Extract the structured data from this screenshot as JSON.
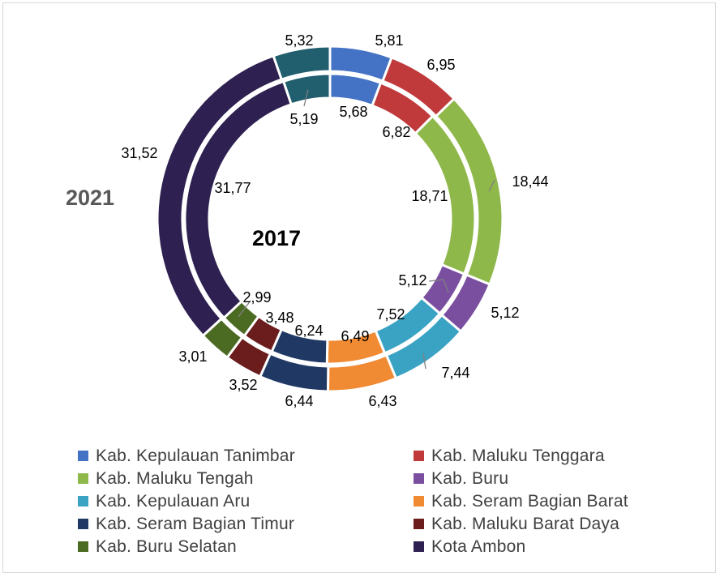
{
  "chart_data": {
    "type": "donut",
    "rings": [
      {
        "name": "2021",
        "position": "outer",
        "values": [
          5.81,
          6.95,
          18.44,
          5.12,
          7.44,
          6.43,
          6.44,
          3.52,
          3.01,
          31.52,
          5.32
        ],
        "labels": [
          "5,81",
          "6,95",
          "18,44",
          "5,12",
          "7,44",
          "6,43",
          "6,44",
          "3,52",
          "3,01",
          "31,52",
          "5,32"
        ]
      },
      {
        "name": "2017",
        "position": "inner",
        "values": [
          5.68,
          6.82,
          18.71,
          5.12,
          7.52,
          6.49,
          6.24,
          3.48,
          2.99,
          31.77,
          5.19
        ],
        "labels": [
          "5,68",
          "6,82",
          "18,71",
          "5,12",
          "7,52",
          "6,49",
          "6,24",
          "3,48",
          "2,99",
          "31,77",
          "5,19"
        ]
      }
    ],
    "categories": [
      "Kab. Kepulauan Tanimbar",
      "Kab. Maluku Tenggara",
      "Kab. Maluku Tengah",
      "Kab. Buru",
      "Kab. Kepulauan Aru",
      "Kab. Seram Bagian Barat",
      "Kab. Seram Bagian Timur",
      "Kab. Maluku Barat Daya",
      "Kab. Buru Selatan",
      "Kota Ambon",
      ""
    ],
    "colors": [
      "#4472c4",
      "#c0393b",
      "#8fb84a",
      "#7a4fa0",
      "#3aa3c4",
      "#f08a33",
      "#1f3864",
      "#6b1c1c",
      "#4b6a22",
      "#2e2050",
      "#215e6e"
    ],
    "legend": {
      "position": "bottom",
      "order": [
        "Kab. Kepulauan Tanimbar",
        "Kab. Maluku Tenggara",
        "Kab. Maluku Tengah",
        "Kab. Buru",
        "Kab. Kepulauan Aru",
        "Kab. Seram Bagian Barat",
        "Kab. Seram Bagian Timur",
        "Kab. Maluku Barat Daya",
        "Kab. Buru Selatan",
        "Kota Ambon"
      ]
    }
  }
}
